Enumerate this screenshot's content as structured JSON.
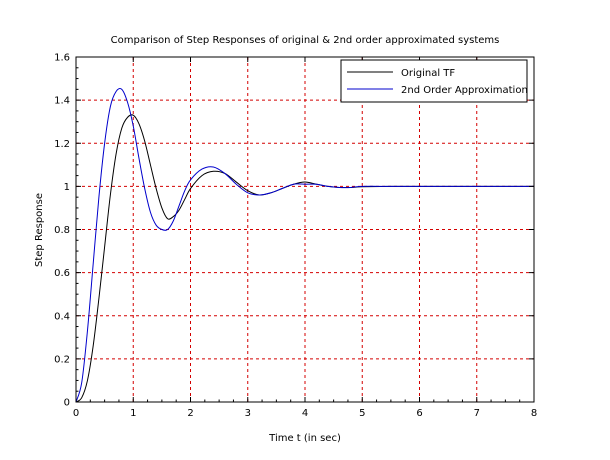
{
  "chart_data": {
    "type": "line",
    "title": "Comparison of Step Responses of original & 2nd order approximated systems",
    "xlabel": "Time t (in sec)",
    "ylabel": "Step Response",
    "xlim": [
      0,
      8
    ],
    "ylim": [
      0,
      1.6
    ],
    "x_ticks": [
      "0",
      "1",
      "2",
      "3",
      "4",
      "5",
      "6",
      "7",
      "8"
    ],
    "y_ticks": [
      "0",
      "0.2",
      "0.4",
      "0.6",
      "0.8",
      "1",
      "1.2",
      "1.4",
      "1.6"
    ],
    "grid": true,
    "grid_color": "#d40000",
    "legend_position": "top-right",
    "series": [
      {
        "name": "Original TF",
        "color": "#000000",
        "x": [
          0,
          0.1,
          0.2,
          0.3,
          0.4,
          0.5,
          0.6,
          0.7,
          0.8,
          0.9,
          1.0,
          1.1,
          1.2,
          1.3,
          1.4,
          1.5,
          1.6,
          1.7,
          1.8,
          1.9,
          2.0,
          2.2,
          2.4,
          2.6,
          2.8,
          3.0,
          3.2,
          3.4,
          3.6,
          3.8,
          4.0,
          4.2,
          4.4,
          4.6,
          4.8,
          5.0,
          5.5,
          6.0,
          6.5,
          7.0,
          7.5,
          8.0
        ],
        "y": [
          0,
          0.02,
          0.1,
          0.26,
          0.48,
          0.72,
          0.96,
          1.15,
          1.27,
          1.32,
          1.33,
          1.29,
          1.21,
          1.1,
          0.99,
          0.9,
          0.85,
          0.86,
          0.89,
          0.94,
          0.99,
          1.05,
          1.07,
          1.06,
          1.02,
          0.98,
          0.96,
          0.97,
          0.99,
          1.01,
          1.02,
          1.01,
          1.0,
          0.995,
          0.995,
          0.998,
          1.0,
          1.0,
          1.0,
          1.0,
          1.0,
          1.0
        ]
      },
      {
        "name": "2nd Order Approximation",
        "color": "#0000cc",
        "x": [
          0,
          0.1,
          0.2,
          0.3,
          0.4,
          0.5,
          0.6,
          0.7,
          0.8,
          0.9,
          1.0,
          1.1,
          1.2,
          1.3,
          1.4,
          1.5,
          1.6,
          1.7,
          1.8,
          1.9,
          2.0,
          2.2,
          2.4,
          2.6,
          2.8,
          3.0,
          3.2,
          3.4,
          3.6,
          3.8,
          4.0,
          4.2,
          4.4,
          4.6,
          4.8,
          5.0,
          5.5,
          6.0,
          6.5,
          7.0,
          7.5,
          8.0
        ],
        "y": [
          0,
          0.09,
          0.33,
          0.64,
          0.95,
          1.2,
          1.37,
          1.44,
          1.45,
          1.39,
          1.28,
          1.13,
          0.99,
          0.88,
          0.82,
          0.8,
          0.8,
          0.84,
          0.91,
          0.98,
          1.03,
          1.08,
          1.09,
          1.06,
          1.01,
          0.97,
          0.96,
          0.97,
          0.99,
          1.01,
          1.01,
          1.01,
          1.0,
          0.995,
          0.995,
          1.0,
          1.0,
          1.0,
          1.0,
          1.0,
          1.0,
          1.0
        ]
      }
    ]
  }
}
